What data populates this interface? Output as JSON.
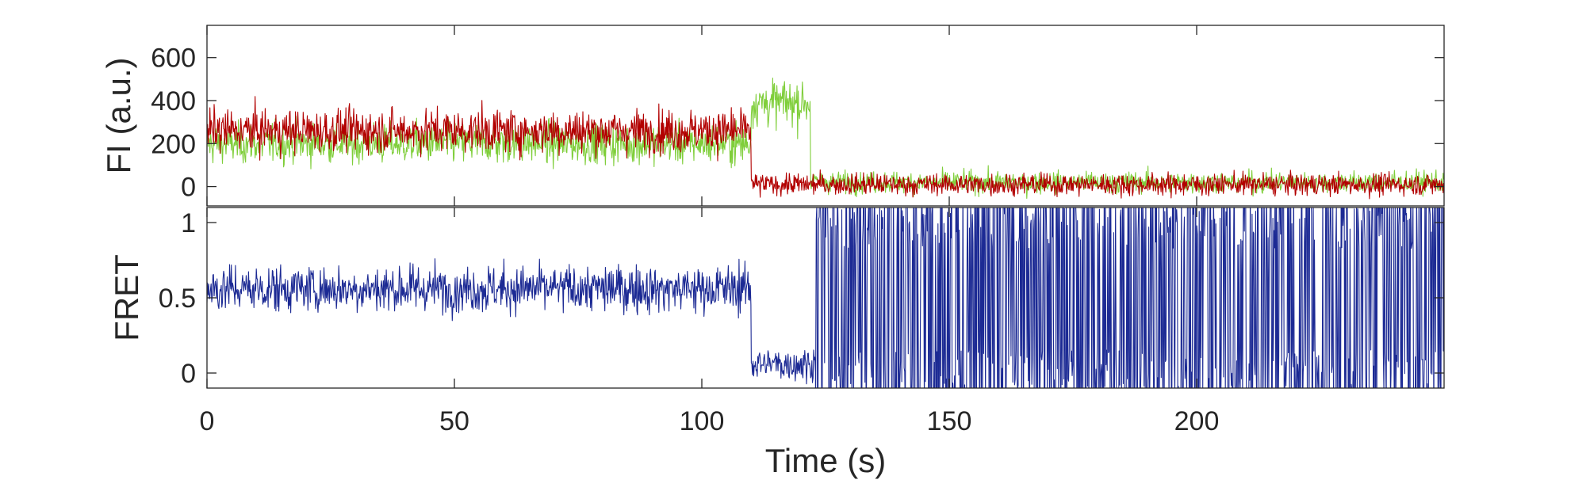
{
  "chart_data": [
    {
      "type": "line",
      "panel": "top",
      "ylabel": "FI (a.u.)",
      "xlabel": "",
      "xlim": [
        0,
        250
      ],
      "ylim": [
        -90,
        750
      ],
      "yticks": [
        0,
        200,
        400,
        600
      ],
      "ytick_labels": [
        "0",
        "200",
        "400",
        "600"
      ],
      "grid": false,
      "series": [
        {
          "color": "#7fce3a",
          "segments": [
            {
              "x": [
                0,
                110
              ],
              "level": 200,
              "noise": 65
            },
            {
              "x": [
                110,
                122
              ],
              "level": 390,
              "noise": 75
            },
            {
              "x": [
                122,
                250
              ],
              "level": 20,
              "noise": 35
            }
          ]
        },
        {
          "color": "#b20000",
          "segments": [
            {
              "x": [
                0,
                110
              ],
              "level": 260,
              "noise": 70
            },
            {
              "x": [
                110,
                250
              ],
              "level": 10,
              "noise": 35
            }
          ]
        }
      ]
    },
    {
      "type": "line",
      "panel": "bottom",
      "ylabel": "FRET",
      "xlabel": "Time (s)",
      "xlim": [
        0,
        250
      ],
      "ylim": [
        -0.1,
        1.1
      ],
      "yticks": [
        0,
        0.5,
        1
      ],
      "ytick_labels": [
        "0",
        "0.5",
        "1"
      ],
      "xticks": [
        0,
        50,
        100,
        150,
        200
      ],
      "xtick_labels": [
        "0",
        "50",
        "100",
        "150",
        "200"
      ],
      "grid": false,
      "series": [
        {
          "color": "#1c2a94",
          "segments": [
            {
              "x": [
                0,
                110
              ],
              "level": 0.56,
              "noise": 0.11
            },
            {
              "x": [
                110,
                123
              ],
              "level": 0.06,
              "noise": 0.08
            },
            {
              "x": [
                123,
                250
              ],
              "level": 0.5,
              "noise": 0.75
            }
          ]
        }
      ]
    }
  ]
}
